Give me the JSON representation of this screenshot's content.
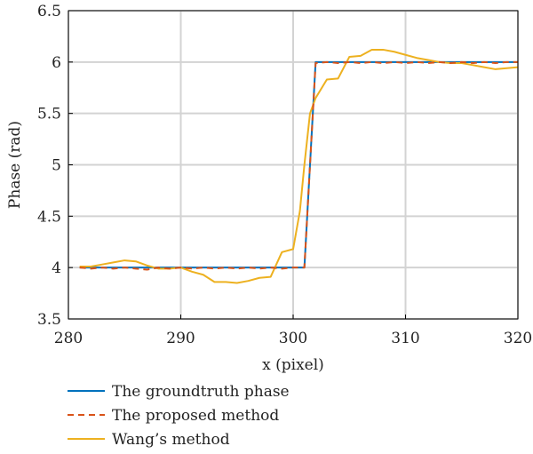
{
  "chart_data": {
    "type": "line",
    "xlabel": "x (pixel)",
    "ylabel": "Phase (rad)",
    "xlim": [
      280,
      320
    ],
    "ylim": [
      3.5,
      6.5
    ],
    "xticks": [
      280,
      290,
      300,
      310,
      320
    ],
    "yticks": [
      3.5,
      4,
      4.5,
      5,
      5.5,
      6,
      6.5
    ],
    "xtick_labels": [
      "280",
      "290",
      "300",
      "310",
      "320"
    ],
    "ytick_labels": [
      "3.5",
      "4",
      "4.5",
      "5",
      "5.5",
      "6",
      "6.5"
    ],
    "grid": true,
    "legend_position": "bottom",
    "series": [
      {
        "name": "The groundtruth phase",
        "color": "#0072BD",
        "style": "solid",
        "points": [
          [
            281,
            4
          ],
          [
            301,
            4
          ],
          [
            302,
            6
          ],
          [
            320,
            6
          ]
        ]
      },
      {
        "name": "The proposed method",
        "color": "#D95319",
        "style": "dashed",
        "points": [
          [
            281,
            4.0
          ],
          [
            282,
            3.99
          ],
          [
            283,
            4.0
          ],
          [
            284,
            3.99
          ],
          [
            285,
            4.0
          ],
          [
            286,
            3.99
          ],
          [
            287,
            3.98
          ],
          [
            288,
            4.0
          ],
          [
            289,
            3.99
          ],
          [
            290,
            4.0
          ],
          [
            291,
            3.99
          ],
          [
            292,
            4.0
          ],
          [
            293,
            3.99
          ],
          [
            294,
            4.0
          ],
          [
            295,
            3.99
          ],
          [
            296,
            4.0
          ],
          [
            297,
            3.99
          ],
          [
            298,
            4.0
          ],
          [
            299,
            3.99
          ],
          [
            300,
            4.0
          ],
          [
            301,
            4.0
          ],
          [
            302,
            5.99
          ],
          [
            303,
            6.0
          ],
          [
            304,
            5.99
          ],
          [
            305,
            6.0
          ],
          [
            306,
            5.99
          ],
          [
            307,
            6.0
          ],
          [
            308,
            5.99
          ],
          [
            309,
            6.0
          ],
          [
            310,
            5.99
          ],
          [
            311,
            6.0
          ],
          [
            312,
            5.99
          ],
          [
            313,
            6.0
          ],
          [
            314,
            5.99
          ],
          [
            315,
            6.0
          ],
          [
            316,
            5.99
          ],
          [
            317,
            6.0
          ],
          [
            318,
            5.99
          ],
          [
            319,
            6.0
          ],
          [
            320,
            6.0
          ]
        ]
      },
      {
        "name": "Wang’s method",
        "color": "#EDB120",
        "style": "solid",
        "points": [
          [
            281,
            4.01
          ],
          [
            282,
            4.01
          ],
          [
            283,
            4.03
          ],
          [
            284,
            4.05
          ],
          [
            285,
            4.07
          ],
          [
            286,
            4.06
          ],
          [
            287,
            4.02
          ],
          [
            288,
            3.99
          ],
          [
            289,
            3.99
          ],
          [
            290,
            4.0
          ],
          [
            291,
            3.96
          ],
          [
            292,
            3.93
          ],
          [
            293,
            3.86
          ],
          [
            294,
            3.86
          ],
          [
            295,
            3.85
          ],
          [
            296,
            3.87
          ],
          [
            297,
            3.9
          ],
          [
            298,
            3.91
          ],
          [
            299,
            4.15
          ],
          [
            300,
            4.18
          ],
          [
            300.6,
            4.55
          ],
          [
            301,
            5.0
          ],
          [
            301.5,
            5.5
          ],
          [
            302,
            5.65
          ],
          [
            303,
            5.83
          ],
          [
            304,
            5.84
          ],
          [
            305,
            6.05
          ],
          [
            306,
            6.06
          ],
          [
            307,
            6.12
          ],
          [
            308,
            6.12
          ],
          [
            309,
            6.1
          ],
          [
            310,
            6.07
          ],
          [
            311,
            6.04
          ],
          [
            312,
            6.02
          ],
          [
            313,
            6.0
          ],
          [
            314,
            5.99
          ],
          [
            315,
            5.99
          ],
          [
            316,
            5.97
          ],
          [
            317,
            5.95
          ],
          [
            318,
            5.93
          ],
          [
            319,
            5.94
          ],
          [
            320,
            5.95
          ]
        ]
      }
    ]
  }
}
